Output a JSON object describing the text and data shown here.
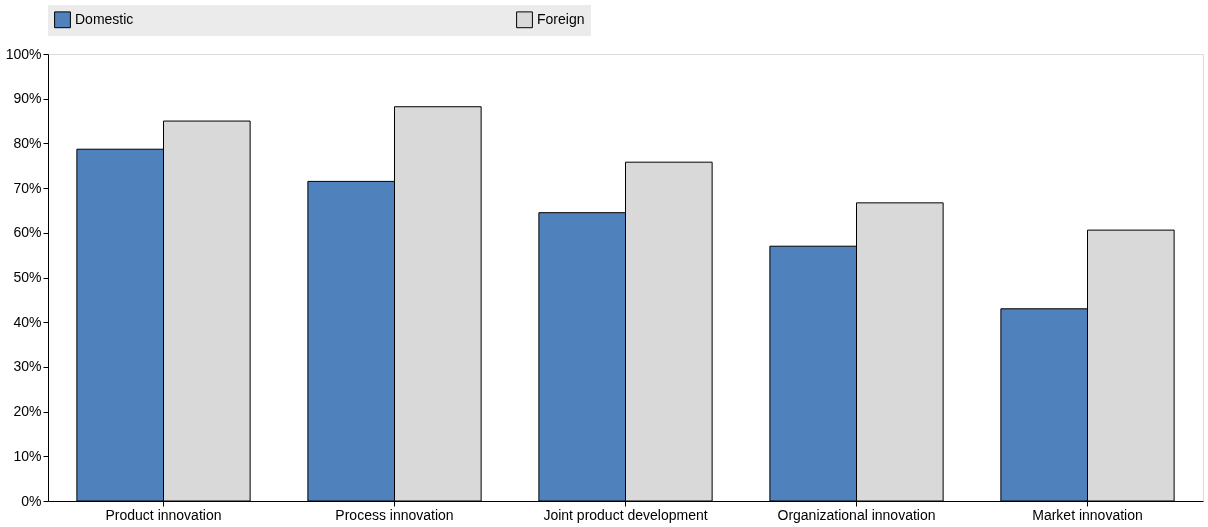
{
  "chart_data": {
    "type": "bar",
    "categories": [
      "Product innovation",
      "Process innovation",
      "Joint product development",
      "Organizational innovation",
      "Market innovation"
    ],
    "series": [
      {
        "name": "Domestic",
        "color": "#4f81bd",
        "values": [
          78.7,
          71.5,
          64.5,
          57.0,
          43.0
        ]
      },
      {
        "name": "Foreign",
        "color": "#d9d9d9",
        "values": [
          85.0,
          88.2,
          75.8,
          66.7,
          60.6
        ]
      }
    ],
    "ylim": [
      0,
      100
    ],
    "yticks": [
      {
        "value": 0,
        "label": "0%"
      },
      {
        "value": 10,
        "label": "10%"
      },
      {
        "value": 20,
        "label": "20%"
      },
      {
        "value": 30,
        "label": "30%"
      },
      {
        "value": 40,
        "label": "40%"
      },
      {
        "value": 50,
        "label": "50%"
      },
      {
        "value": 60,
        "label": "60%"
      },
      {
        "value": 70,
        "label": "70%"
      },
      {
        "value": 80,
        "label": "80%"
      },
      {
        "value": 90,
        "label": "90%"
      },
      {
        "value": 100,
        "label": "100%"
      }
    ],
    "grid": false,
    "legend": "top"
  }
}
